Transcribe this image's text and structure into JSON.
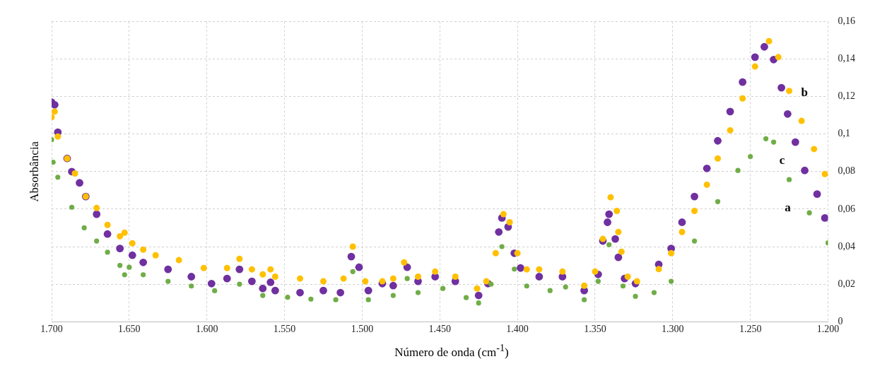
{
  "chart_data": {
    "type": "scatter",
    "xlabel": "Número de onda (cm$^{-1}$)",
    "ylabel": "Absorbância",
    "xlim": [
      1700,
      1200
    ],
    "xticks": [
      {
        "value": 1700,
        "label": "1.700"
      },
      {
        "value": 1650,
        "label": "1.650"
      },
      {
        "value": 1600,
        "label": "1.600"
      },
      {
        "value": 1550,
        "label": "1.550"
      },
      {
        "value": 1500,
        "label": "1.500"
      },
      {
        "value": 1450,
        "label": "1.450"
      },
      {
        "value": 1400,
        "label": "1.400"
      },
      {
        "value": 1350,
        "label": "1.350"
      },
      {
        "value": 1300,
        "label": "1.300"
      },
      {
        "value": 1250,
        "label": "1.250"
      },
      {
        "value": 1200,
        "label": "1.200"
      }
    ],
    "ylim": [
      0,
      0.16
    ],
    "yticks": [
      0,
      {
        "value": 0.02,
        "label": "0,02"
      },
      {
        "value": 0.04,
        "label": "0,04"
      },
      {
        "value": 0.06,
        "label": "0,06"
      },
      {
        "value": 0.08,
        "label": "0,08"
      },
      {
        "value": 0.1,
        "label": "0,1"
      },
      {
        "value": 0.12,
        "label": "0,12"
      },
      {
        "value": 0.14,
        "label": "0,14"
      },
      {
        "value": 0.16,
        "label": "0,16"
      }
    ],
    "grid": true,
    "legend": false,
    "marker": "circle",
    "series": [
      {
        "name": "a",
        "color": "#70ad47",
        "x": [
          1700,
          1699,
          1696,
          1687,
          1679,
          1671,
          1664,
          1656,
          1653,
          1650,
          1641,
          1625,
          1610,
          1595,
          1579,
          1564,
          1548,
          1533,
          1517,
          1506,
          1496,
          1480,
          1471,
          1464,
          1448,
          1433,
          1425,
          1417,
          1410,
          1402,
          1394,
          1379,
          1369,
          1357,
          1348,
          1341,
          1332,
          1324,
          1312,
          1301,
          1286,
          1271,
          1258,
          1250,
          1240,
          1235,
          1225,
          1212,
          1200
        ],
        "values": [
          0.097,
          0.085,
          0.077,
          0.061,
          0.05,
          0.043,
          0.037,
          0.03,
          0.025,
          0.029,
          0.025,
          0.0215,
          0.019,
          0.0165,
          0.02,
          0.014,
          0.013,
          0.012,
          0.0117,
          0.0267,
          0.0117,
          0.014,
          0.023,
          0.0155,
          0.0177,
          0.0128,
          0.01,
          0.02,
          0.04,
          0.028,
          0.019,
          0.0166,
          0.0185,
          0.0117,
          0.0215,
          0.041,
          0.019,
          0.0135,
          0.0155,
          0.0215,
          0.043,
          0.064,
          0.0806,
          0.088,
          0.0975,
          0.0957,
          0.0757,
          0.058,
          0.042
        ]
      },
      {
        "name": "b",
        "color": "#ffc000",
        "x": [
          1700,
          1698,
          1696,
          1690,
          1685,
          1678,
          1671,
          1664,
          1656,
          1653,
          1648,
          1641,
          1633,
          1618,
          1602,
          1587,
          1579,
          1571,
          1564,
          1559,
          1556,
          1540,
          1525,
          1512,
          1506,
          1498,
          1487,
          1480,
          1473,
          1464,
          1453,
          1440,
          1426,
          1420,
          1414,
          1409,
          1405,
          1400,
          1394,
          1386,
          1371,
          1357,
          1350,
          1345,
          1340,
          1336,
          1335,
          1333,
          1329,
          1323,
          1309,
          1301,
          1294,
          1286,
          1278,
          1271,
          1263,
          1255,
          1247,
          1238,
          1232,
          1225,
          1217,
          1209,
          1202
        ],
        "values": [
          0.109,
          0.112,
          0.0987,
          0.087,
          0.079,
          0.0667,
          0.0606,
          0.0516,
          0.0455,
          0.0474,
          0.0418,
          0.0384,
          0.0354,
          0.0328,
          0.0286,
          0.0286,
          0.0335,
          0.0279,
          0.0252,
          0.0279,
          0.024,
          0.023,
          0.0215,
          0.023,
          0.04,
          0.0215,
          0.0215,
          0.023,
          0.0316,
          0.024,
          0.0267,
          0.024,
          0.0177,
          0.0215,
          0.0365,
          0.0573,
          0.053,
          0.0365,
          0.0279,
          0.0279,
          0.0267,
          0.0192,
          0.0267,
          0.0441,
          0.0663,
          0.059,
          0.0478,
          0.0373,
          0.024,
          0.0215,
          0.028,
          0.0365,
          0.0478,
          0.059,
          0.073,
          0.087,
          0.102,
          0.119,
          0.136,
          0.1495,
          0.141,
          0.123,
          0.107,
          0.092,
          0.0787
        ]
      },
      {
        "name": "c",
        "color": "#7030a0",
        "x": [
          1700,
          1698,
          1696,
          1690,
          1687,
          1682,
          1678,
          1671,
          1664,
          1656,
          1648,
          1641,
          1625,
          1610,
          1597,
          1587,
          1579,
          1571,
          1564,
          1559,
          1556,
          1540,
          1525,
          1514,
          1507,
          1502,
          1496,
          1487,
          1480,
          1471,
          1464,
          1453,
          1440,
          1425,
          1419,
          1412,
          1410,
          1406,
          1402,
          1398,
          1386,
          1371,
          1357,
          1348,
          1345,
          1342,
          1341,
          1337,
          1335,
          1331,
          1324,
          1309,
          1301,
          1294,
          1286,
          1278,
          1271,
          1263,
          1255,
          1247,
          1241,
          1235,
          1230,
          1226,
          1221,
          1215,
          1207,
          1202
        ],
        "values": [
          0.117,
          0.1156,
          0.101,
          0.087,
          0.08,
          0.074,
          0.0667,
          0.0573,
          0.0467,
          0.039,
          0.0354,
          0.0316,
          0.0279,
          0.024,
          0.0203,
          0.023,
          0.0279,
          0.0215,
          0.0177,
          0.021,
          0.0166,
          0.0155,
          0.0166,
          0.0155,
          0.0347,
          0.029,
          0.0166,
          0.0203,
          0.0192,
          0.029,
          0.0215,
          0.024,
          0.0215,
          0.014,
          0.0203,
          0.0478,
          0.0553,
          0.0505,
          0.0365,
          0.0286,
          0.024,
          0.024,
          0.0166,
          0.0252,
          0.043,
          0.053,
          0.0573,
          0.0441,
          0.0343,
          0.023,
          0.0203,
          0.0305,
          0.039,
          0.053,
          0.0667,
          0.0817,
          0.0964,
          0.112,
          0.1277,
          0.141,
          0.1465,
          0.1397,
          0.1247,
          0.1107,
          0.0957,
          0.0806,
          0.068,
          0.0553
        ]
      }
    ]
  }
}
